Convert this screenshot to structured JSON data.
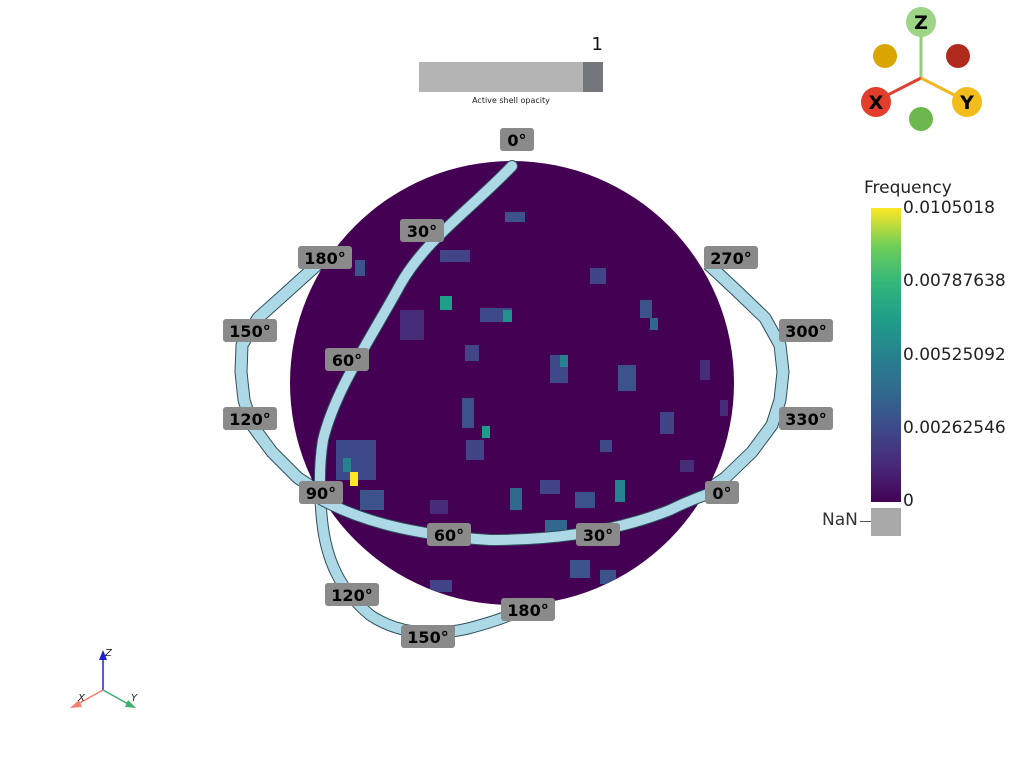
{
  "opacity_slider": {
    "value": "1",
    "caption": "Active shell opacity",
    "fraction": 1.0
  },
  "colorbar": {
    "title": "Frequency",
    "ticks": [
      "0.0105018",
      "0.00787638",
      "0.00525092",
      "0.00262546",
      "0"
    ],
    "nan_label": "NaN",
    "colors": [
      "#440154",
      "#3e4989",
      "#26828e",
      "#35b779",
      "#fde725"
    ],
    "nan_color": "#a8a8a8"
  },
  "orientation_widget": {
    "labels": [
      "Z",
      "X",
      "Y"
    ]
  },
  "axes_triad": {
    "labels": [
      "Z",
      "X",
      "Y"
    ]
  },
  "rings": {
    "meridian": [
      "0°",
      "30°",
      "60°",
      "90°",
      "120°",
      "150°",
      "180°"
    ],
    "equator": [
      "0°",
      "30°",
      "60°",
      "90°",
      "120°",
      "150°",
      "180°"
    ],
    "ring": [
      "180°",
      "150°",
      "120°",
      "270°",
      "300°",
      "330°",
      "0°"
    ]
  },
  "colors": {
    "sphere": "#440154",
    "ring": "#add8e6",
    "label_box": "#8a8a8a"
  }
}
